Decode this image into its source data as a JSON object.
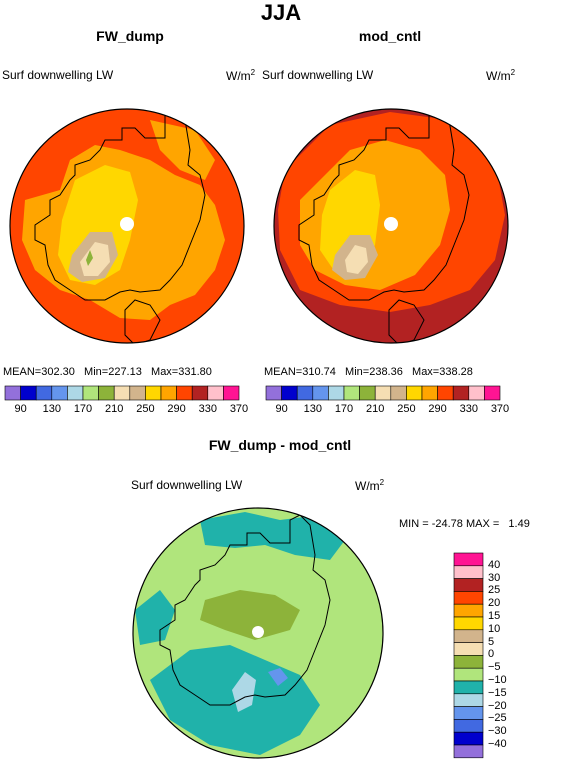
{
  "title": "JJA",
  "colors": {
    "palette14": [
      "#9370db",
      "#0000cd",
      "#4169e1",
      "#6495ed",
      "#add8e6",
      "#b0e57c",
      "#8db33a",
      "#f5deb3",
      "#d2b48c",
      "#ffd700",
      "#ffa500",
      "#ff4500",
      "#b22222",
      "#ffc0cb",
      "#ff1493"
    ],
    "diff_palette": [
      "#9370db",
      "#0000cd",
      "#4169e1",
      "#6495ed",
      "#add8e6",
      "#20b2aa",
      "#b0e57c",
      "#8db33a",
      "#f5deb3",
      "#d2b48c",
      "#ffd700",
      "#ffa500",
      "#ff4500",
      "#b22222",
      "#ffc0cb",
      "#ff1493"
    ]
  },
  "chart_data": [
    {
      "type": "heatmap",
      "title": "FW_dump",
      "variable": "Surf downwelling LW",
      "units": "W/m",
      "units_exp": "2",
      "stats": {
        "mean_label": "MEAN=",
        "mean": "302.30",
        "min_label": "Min=",
        "min": "227.13",
        "max_label": "Max=",
        "max": "331.80"
      },
      "colorbar_ticks": [
        "90",
        "130",
        "170",
        "210",
        "250",
        "290",
        "330",
        "370"
      ]
    },
    {
      "type": "heatmap",
      "title": "mod_cntl",
      "variable": "Surf downwelling LW",
      "units": "W/m",
      "units_exp": "2",
      "stats": {
        "mean_label": "MEAN=",
        "mean": "310.74",
        "min_label": "Min=",
        "min": "238.36",
        "max_label": "Max=",
        "max": "338.28"
      },
      "colorbar_ticks": [
        "90",
        "130",
        "170",
        "210",
        "250",
        "290",
        "330",
        "370"
      ]
    },
    {
      "type": "heatmap",
      "title": "FW_dump - mod_cntl",
      "variable": "Surf downwelling LW",
      "units": "W/m",
      "units_exp": "2",
      "stats_text": "MIN = -24.78 MAX =   1.49",
      "colorbar_ticks": [
        "40",
        "30",
        "25",
        "20",
        "15",
        "10",
        "5",
        "0",
        "−5",
        "−10",
        "−15",
        "−20",
        "−25",
        "−30",
        "−40"
      ]
    }
  ]
}
